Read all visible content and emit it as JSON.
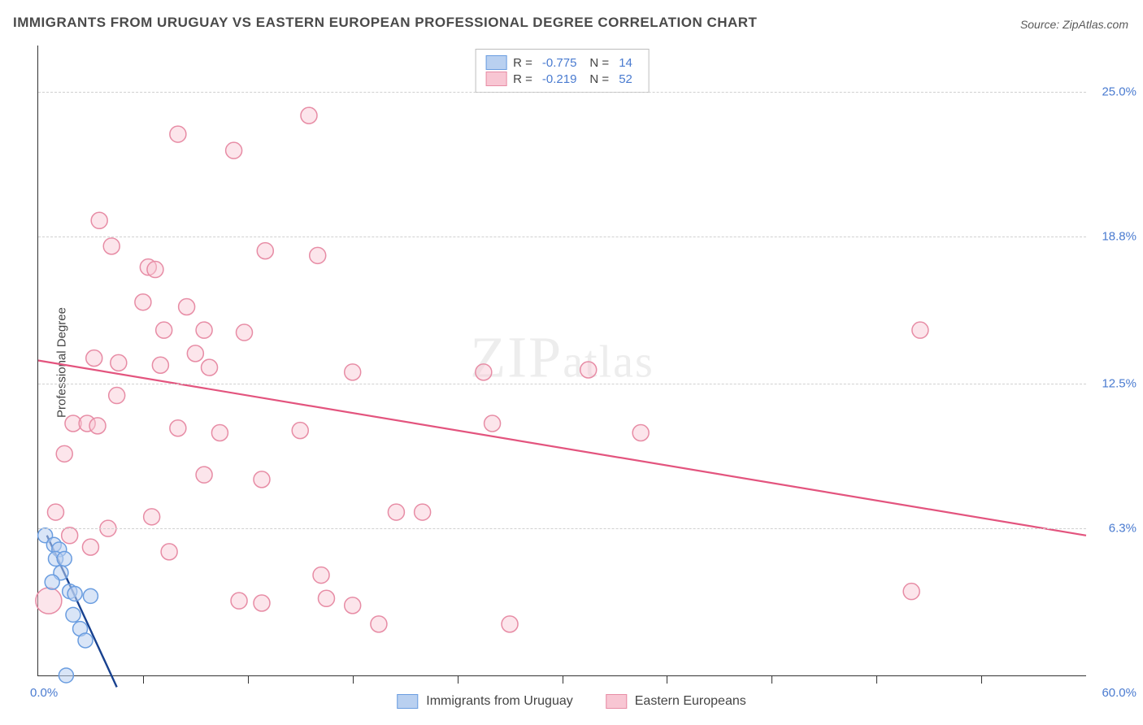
{
  "title": "IMMIGRANTS FROM URUGUAY VS EASTERN EUROPEAN PROFESSIONAL DEGREE CORRELATION CHART",
  "source": "Source: ZipAtlas.com",
  "y_axis_label": "Professional Degree",
  "watermark_a": "ZIP",
  "watermark_b": "atlas",
  "chart": {
    "type": "scatter",
    "xlim": [
      0,
      60
    ],
    "ylim": [
      0,
      27
    ],
    "x_origin_label": "0.0%",
    "x_max_label": "60.0%",
    "y_ticks": [
      {
        "v": 6.3,
        "label": "6.3%"
      },
      {
        "v": 12.5,
        "label": "12.5%"
      },
      {
        "v": 18.8,
        "label": "18.8%"
      },
      {
        "v": 25.0,
        "label": "25.0%"
      }
    ],
    "x_ticks": [
      6,
      12,
      18,
      24,
      30,
      36,
      42,
      48,
      54
    ],
    "grid_color": "#d0d0d0",
    "background_color": "#ffffff",
    "series": [
      {
        "name": "Immigrants from Uruguay",
        "marker_stroke": "#6a9de0",
        "marker_fill": "#b9d0f0",
        "marker_fill_opacity": 0.55,
        "marker_radius": 9,
        "line_color": "#18418f",
        "line_width": 2.4,
        "R": "-0.775",
        "N": "14",
        "trend": {
          "x1": 0.5,
          "y1": 6.0,
          "x2": 4.5,
          "y2": -0.5
        },
        "points": [
          {
            "x": 0.4,
            "y": 6.0
          },
          {
            "x": 0.9,
            "y": 5.6
          },
          {
            "x": 1.2,
            "y": 5.4
          },
          {
            "x": 1.0,
            "y": 5.0
          },
          {
            "x": 1.5,
            "y": 5.0
          },
          {
            "x": 1.3,
            "y": 4.4
          },
          {
            "x": 1.8,
            "y": 3.6
          },
          {
            "x": 2.1,
            "y": 3.5
          },
          {
            "x": 3.0,
            "y": 3.4
          },
          {
            "x": 2.0,
            "y": 2.6
          },
          {
            "x": 2.4,
            "y": 2.0
          },
          {
            "x": 2.7,
            "y": 1.5
          },
          {
            "x": 1.6,
            "y": 0.0
          },
          {
            "x": 0.8,
            "y": 4.0
          }
        ]
      },
      {
        "name": "Eastern Europeans",
        "marker_stroke": "#e78ca5",
        "marker_fill": "#f8c6d3",
        "marker_fill_opacity": 0.45,
        "marker_radius": 10,
        "line_color": "#e3547e",
        "line_width": 2.2,
        "R": "-0.219",
        "N": "52",
        "trend": {
          "x1": 0,
          "y1": 13.5,
          "x2": 60,
          "y2": 6.0
        },
        "points": [
          {
            "x": 15.5,
            "y": 24.0
          },
          {
            "x": 8.0,
            "y": 23.2
          },
          {
            "x": 11.2,
            "y": 22.5
          },
          {
            "x": 3.5,
            "y": 19.5
          },
          {
            "x": 4.2,
            "y": 18.4
          },
          {
            "x": 6.3,
            "y": 17.5
          },
          {
            "x": 6.7,
            "y": 17.4
          },
          {
            "x": 13.0,
            "y": 18.2
          },
          {
            "x": 16.0,
            "y": 18.0
          },
          {
            "x": 6.0,
            "y": 16.0
          },
          {
            "x": 8.5,
            "y": 15.8
          },
          {
            "x": 7.2,
            "y": 14.8
          },
          {
            "x": 9.5,
            "y": 14.8
          },
          {
            "x": 11.8,
            "y": 14.7
          },
          {
            "x": 9.0,
            "y": 13.8
          },
          {
            "x": 3.2,
            "y": 13.6
          },
          {
            "x": 4.6,
            "y": 13.4
          },
          {
            "x": 7.0,
            "y": 13.3
          },
          {
            "x": 9.8,
            "y": 13.2
          },
          {
            "x": 18.0,
            "y": 13.0
          },
          {
            "x": 25.5,
            "y": 13.0
          },
          {
            "x": 31.5,
            "y": 13.1
          },
          {
            "x": 50.5,
            "y": 14.8
          },
          {
            "x": 4.5,
            "y": 12.0
          },
          {
            "x": 2.0,
            "y": 10.8
          },
          {
            "x": 2.8,
            "y": 10.8
          },
          {
            "x": 3.4,
            "y": 10.7
          },
          {
            "x": 8.0,
            "y": 10.6
          },
          {
            "x": 10.4,
            "y": 10.4
          },
          {
            "x": 34.5,
            "y": 10.4
          },
          {
            "x": 26.0,
            "y": 10.8
          },
          {
            "x": 1.5,
            "y": 9.5
          },
          {
            "x": 9.5,
            "y": 8.6
          },
          {
            "x": 12.8,
            "y": 8.4
          },
          {
            "x": 20.5,
            "y": 7.0
          },
          {
            "x": 22.0,
            "y": 7.0
          },
          {
            "x": 1.0,
            "y": 7.0
          },
          {
            "x": 19.5,
            "y": 2.2
          },
          {
            "x": 27.0,
            "y": 2.2
          },
          {
            "x": 18.0,
            "y": 3.0
          },
          {
            "x": 11.5,
            "y": 3.2
          },
          {
            "x": 12.8,
            "y": 3.1
          },
          {
            "x": 16.5,
            "y": 3.3
          },
          {
            "x": 16.2,
            "y": 4.3
          },
          {
            "x": 0.6,
            "y": 3.2,
            "r": 16
          },
          {
            "x": 50.0,
            "y": 3.6
          },
          {
            "x": 4.0,
            "y": 6.3
          },
          {
            "x": 6.5,
            "y": 6.8
          },
          {
            "x": 7.5,
            "y": 5.3
          },
          {
            "x": 15.0,
            "y": 10.5
          },
          {
            "x": 1.8,
            "y": 6.0
          },
          {
            "x": 3.0,
            "y": 5.5
          }
        ]
      }
    ]
  },
  "legend_box": {
    "r_label": "R =",
    "n_label": "N ="
  },
  "bottom_legend": {
    "items": [
      "Immigrants from Uruguay",
      "Eastern Europeans"
    ]
  }
}
